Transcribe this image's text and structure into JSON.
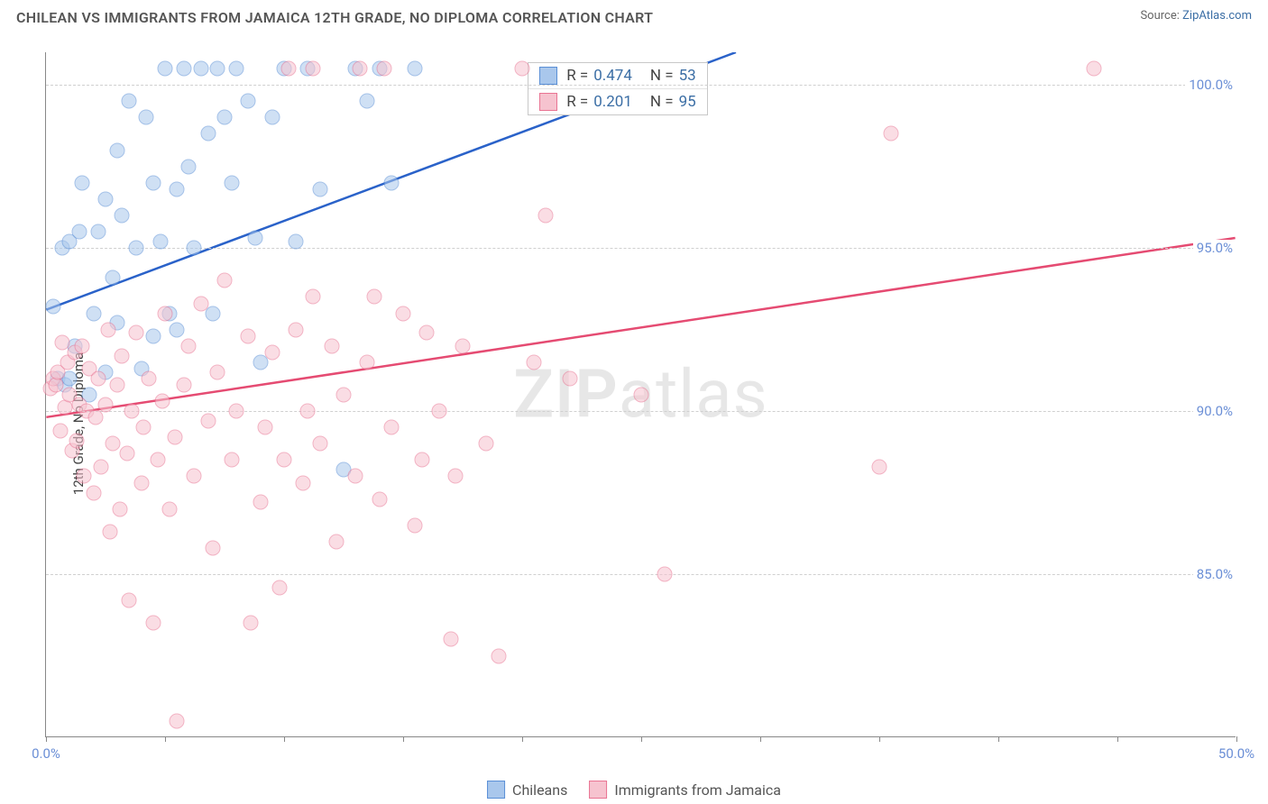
{
  "header": {
    "title": "CHILEAN VS IMMIGRANTS FROM JAMAICA 12TH GRADE, NO DIPLOMA CORRELATION CHART",
    "source_label": "Source:",
    "source_name": "ZipAtlas.com"
  },
  "ylabel": "12th Grade, No Diploma",
  "watermark": "ZIPatlas",
  "chart": {
    "type": "scatter",
    "xlim": [
      0,
      50
    ],
    "ylim": [
      80,
      101
    ],
    "x_ticks": [
      0,
      5,
      10,
      15,
      20,
      25,
      30,
      35,
      40,
      45,
      50
    ],
    "x_tick_labels": {
      "0": "0.0%",
      "50": "50.0%"
    },
    "y_ticks": [
      85,
      90,
      95,
      100
    ],
    "y_tick_labels": {
      "85": "85.0%",
      "90": "90.0%",
      "95": "95.0%",
      "100": "100.0%"
    },
    "grid_color": "#d0d0d0",
    "axis_color": "#888888",
    "background_color": "#ffffff",
    "marker_radius": 8.5,
    "marker_opacity": 0.55,
    "series": [
      {
        "key": "chileans",
        "label": "Chileans",
        "fill": "#a9c7ec",
        "stroke": "#5a8fd6",
        "line_color": "#2a62c9",
        "R": "0.474",
        "N": "53",
        "trend": {
          "x1": 0,
          "y1": 93.1,
          "x2": 29,
          "y2": 101
        },
        "points": [
          [
            0.3,
            93.2
          ],
          [
            0.5,
            91.0
          ],
          [
            0.7,
            95.0
          ],
          [
            0.8,
            90.8
          ],
          [
            1.0,
            91.0
          ],
          [
            1.0,
            95.2
          ],
          [
            1.2,
            92.0
          ],
          [
            1.4,
            95.5
          ],
          [
            1.5,
            97.0
          ],
          [
            1.8,
            90.5
          ],
          [
            2.0,
            93.0
          ],
          [
            2.2,
            95.5
          ],
          [
            2.5,
            96.5
          ],
          [
            2.5,
            91.2
          ],
          [
            2.8,
            94.1
          ],
          [
            3.0,
            98.0
          ],
          [
            3.0,
            92.7
          ],
          [
            3.2,
            96.0
          ],
          [
            3.5,
            99.5
          ],
          [
            3.8,
            95.0
          ],
          [
            4.0,
            91.3
          ],
          [
            4.2,
            99.0
          ],
          [
            4.5,
            97.0
          ],
          [
            4.5,
            92.3
          ],
          [
            4.8,
            95.2
          ],
          [
            5.0,
            100.5
          ],
          [
            5.2,
            93.0
          ],
          [
            5.5,
            96.8
          ],
          [
            5.5,
            92.5
          ],
          [
            5.8,
            100.5
          ],
          [
            6.0,
            97.5
          ],
          [
            6.2,
            95.0
          ],
          [
            6.5,
            100.5
          ],
          [
            6.8,
            98.5
          ],
          [
            7.0,
            93.0
          ],
          [
            7.2,
            100.5
          ],
          [
            7.5,
            99.0
          ],
          [
            7.8,
            97.0
          ],
          [
            8.0,
            100.5
          ],
          [
            8.5,
            99.5
          ],
          [
            8.8,
            95.3
          ],
          [
            9.0,
            91.5
          ],
          [
            9.5,
            99.0
          ],
          [
            10.0,
            100.5
          ],
          [
            10.5,
            95.2
          ],
          [
            11.0,
            100.5
          ],
          [
            11.5,
            96.8
          ],
          [
            12.5,
            88.2
          ],
          [
            13.0,
            100.5
          ],
          [
            13.5,
            99.5
          ],
          [
            14.0,
            100.5
          ],
          [
            14.5,
            97.0
          ],
          [
            15.5,
            100.5
          ]
        ]
      },
      {
        "key": "jamaica",
        "label": "Immigrants from Jamaica",
        "fill": "#f6c3cf",
        "stroke": "#e97493",
        "line_color": "#e54b72",
        "R": "0.201",
        "N": "95",
        "trend": {
          "x1": 0,
          "y1": 89.8,
          "x2": 50,
          "y2": 95.3
        },
        "points": [
          [
            0.2,
            90.7
          ],
          [
            0.3,
            91.0
          ],
          [
            0.4,
            90.8
          ],
          [
            0.5,
            91.2
          ],
          [
            0.6,
            89.4
          ],
          [
            0.7,
            92.1
          ],
          [
            0.8,
            90.1
          ],
          [
            0.9,
            91.5
          ],
          [
            1.0,
            90.5
          ],
          [
            1.1,
            88.8
          ],
          [
            1.2,
            91.8
          ],
          [
            1.3,
            89.1
          ],
          [
            1.4,
            90.2
          ],
          [
            1.5,
            92.0
          ],
          [
            1.6,
            88.0
          ],
          [
            1.7,
            90.0
          ],
          [
            1.8,
            91.3
          ],
          [
            2.0,
            87.5
          ],
          [
            2.1,
            89.8
          ],
          [
            2.2,
            91.0
          ],
          [
            2.3,
            88.3
          ],
          [
            2.5,
            90.2
          ],
          [
            2.6,
            92.5
          ],
          [
            2.7,
            86.3
          ],
          [
            2.8,
            89.0
          ],
          [
            3.0,
            90.8
          ],
          [
            3.1,
            87.0
          ],
          [
            3.2,
            91.7
          ],
          [
            3.4,
            88.7
          ],
          [
            3.5,
            84.2
          ],
          [
            3.6,
            90.0
          ],
          [
            3.8,
            92.4
          ],
          [
            4.0,
            87.8
          ],
          [
            4.1,
            89.5
          ],
          [
            4.3,
            91.0
          ],
          [
            4.5,
            83.5
          ],
          [
            4.7,
            88.5
          ],
          [
            4.9,
            90.3
          ],
          [
            5.0,
            93.0
          ],
          [
            5.2,
            87.0
          ],
          [
            5.4,
            89.2
          ],
          [
            5.5,
            80.5
          ],
          [
            5.8,
            90.8
          ],
          [
            6.0,
            92.0
          ],
          [
            6.2,
            88.0
          ],
          [
            6.5,
            93.3
          ],
          [
            6.8,
            89.7
          ],
          [
            7.0,
            85.8
          ],
          [
            7.2,
            91.2
          ],
          [
            7.5,
            94.0
          ],
          [
            7.8,
            88.5
          ],
          [
            8.0,
            90.0
          ],
          [
            8.5,
            92.3
          ],
          [
            8.6,
            83.5
          ],
          [
            9.0,
            87.2
          ],
          [
            9.2,
            89.5
          ],
          [
            9.5,
            91.8
          ],
          [
            9.8,
            84.6
          ],
          [
            10.0,
            88.5
          ],
          [
            10.2,
            100.5
          ],
          [
            10.5,
            92.5
          ],
          [
            10.8,
            87.8
          ],
          [
            11.0,
            90.0
          ],
          [
            11.2,
            93.5
          ],
          [
            11.2,
            100.5
          ],
          [
            11.5,
            89.0
          ],
          [
            12.0,
            92.0
          ],
          [
            12.2,
            86.0
          ],
          [
            12.5,
            90.5
          ],
          [
            13.0,
            88.0
          ],
          [
            13.2,
            100.5
          ],
          [
            13.5,
            91.5
          ],
          [
            13.8,
            93.5
          ],
          [
            14.0,
            87.3
          ],
          [
            14.2,
            100.5
          ],
          [
            14.5,
            89.5
          ],
          [
            15.0,
            93.0
          ],
          [
            15.5,
            86.5
          ],
          [
            15.8,
            88.5
          ],
          [
            16.0,
            92.4
          ],
          [
            16.5,
            90.0
          ],
          [
            17.0,
            83.0
          ],
          [
            17.2,
            88.0
          ],
          [
            17.5,
            92.0
          ],
          [
            18.5,
            89.0
          ],
          [
            19.0,
            82.5
          ],
          [
            20.0,
            100.5
          ],
          [
            20.5,
            91.5
          ],
          [
            21.0,
            96.0
          ],
          [
            22.0,
            91.0
          ],
          [
            25.0,
            90.5
          ],
          [
            26.0,
            85.0
          ],
          [
            35.0,
            88.3
          ],
          [
            35.5,
            98.5
          ],
          [
            44.0,
            100.5
          ]
        ]
      }
    ]
  },
  "stats_box": {
    "left_pct": 40.5,
    "top_pct": 1.5
  },
  "legend": {
    "position": "bottom-center"
  }
}
